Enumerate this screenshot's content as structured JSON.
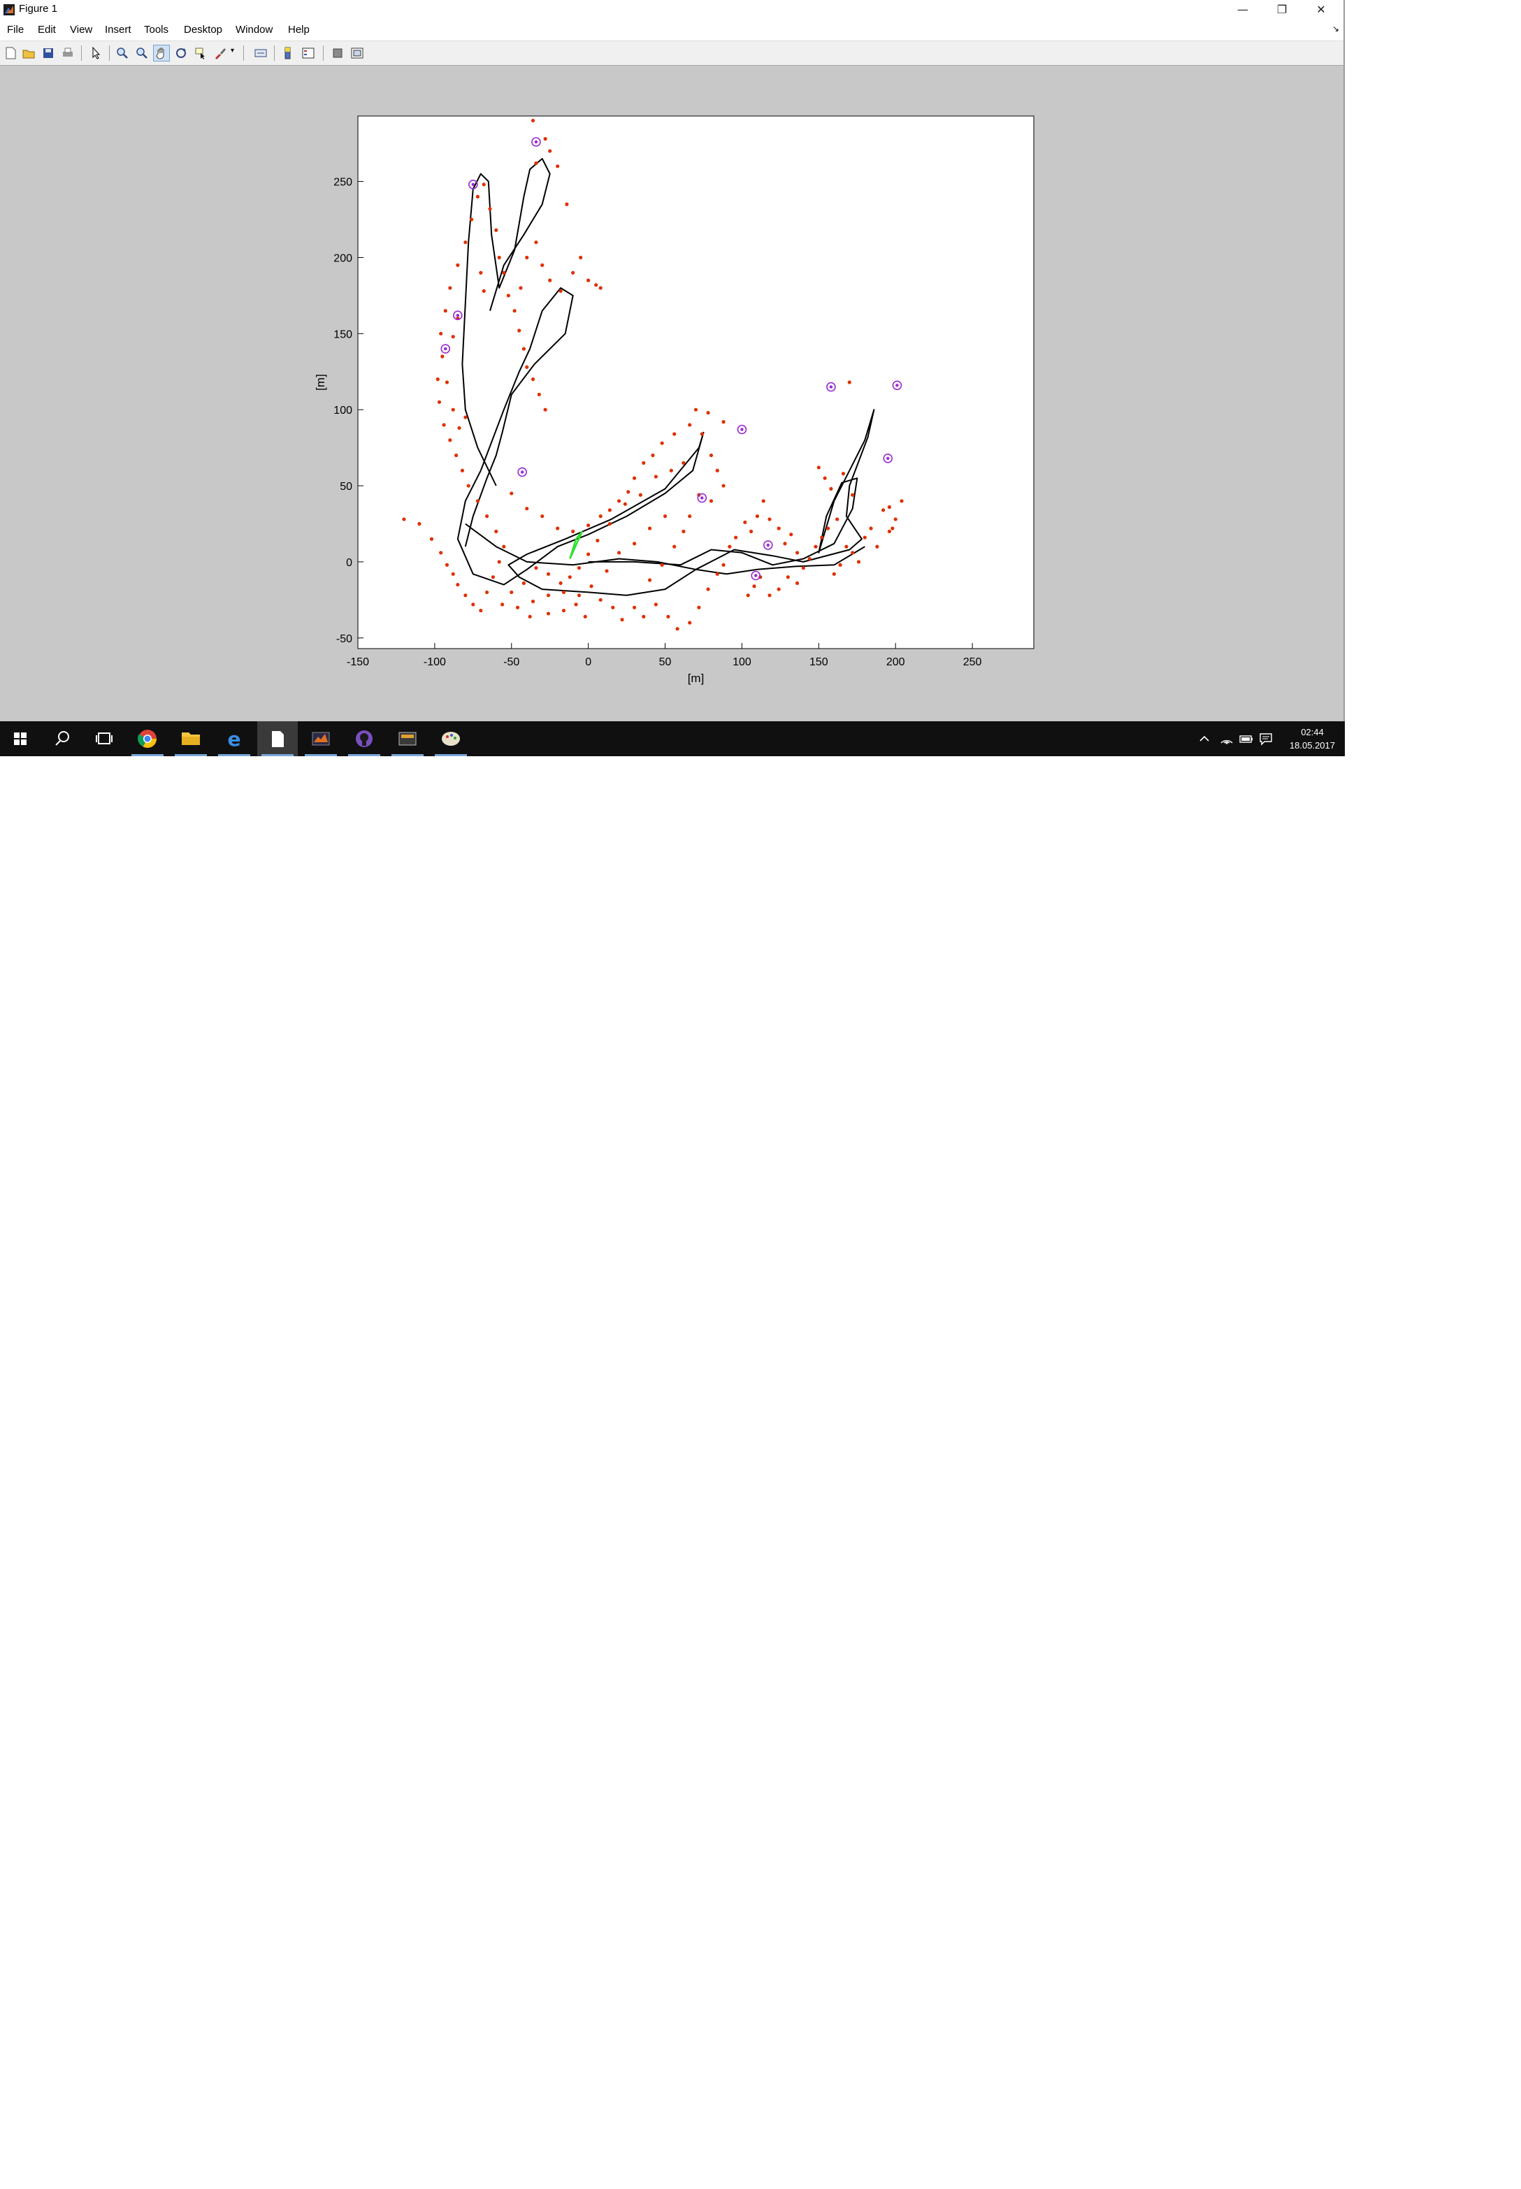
{
  "window": {
    "title": "Figure 1",
    "controls": {
      "minimize": "—",
      "restore": "❐",
      "close": "✕"
    }
  },
  "menu": {
    "items": [
      "File",
      "Edit",
      "View",
      "Insert",
      "Tools",
      "Desktop",
      "Window",
      "Help"
    ],
    "dock_arrow": "↘"
  },
  "toolbar": {
    "tools": [
      "new-figure-icon",
      "open-file-icon",
      "save-icon",
      "print-icon",
      "edit-plot-pointer-icon",
      "zoom-in-icon",
      "zoom-out-icon",
      "pan-hand-icon",
      "rotate-3d-icon",
      "data-cursor-icon",
      "brush-icon",
      "link-plot-icon",
      "insert-colorbar-icon",
      "insert-legend-icon",
      "hide-plot-tools-icon",
      "show-plot-tools-icon"
    ],
    "active_tool": "pan-hand-icon"
  },
  "chart_data": {
    "type": "scatter",
    "title": "",
    "xlabel": "[m]",
    "ylabel": "[m]",
    "xlim": [
      -150,
      290
    ],
    "ylim": [
      -57,
      293
    ],
    "xticks": [
      -150,
      -100,
      -50,
      0,
      50,
      100,
      150,
      200,
      250
    ],
    "yticks": [
      -50,
      0,
      50,
      100,
      150,
      200,
      250
    ],
    "grid": false,
    "legend": "none",
    "colors": {
      "trajectory": "#000000",
      "landmark": "#e03000",
      "circled": "#9a2ad0",
      "vehicle": "#30e030"
    },
    "trajectory": [
      [
        [
          0,
          0
        ],
        [
          30,
          0
        ],
        [
          60,
          -2
        ],
        [
          80,
          8
        ],
        [
          100,
          6
        ],
        [
          120,
          -2
        ],
        [
          140,
          2
        ],
        [
          160,
          12
        ],
        [
          172,
          35
        ],
        [
          175,
          55
        ],
        [
          165,
          52
        ],
        [
          155,
          30
        ],
        [
          150,
          6
        ],
        [
          160,
          40
        ],
        [
          180,
          80
        ],
        [
          186,
          100
        ],
        [
          182,
          82
        ],
        [
          170,
          50
        ],
        [
          168,
          30
        ],
        [
          178,
          15
        ],
        [
          170,
          8
        ],
        [
          140,
          0
        ],
        [
          120,
          4
        ],
        [
          95,
          8
        ],
        [
          70,
          -5
        ],
        [
          50,
          -18
        ],
        [
          25,
          -22
        ],
        [
          0,
          -20
        ],
        [
          -30,
          -18
        ],
        [
          -45,
          -10
        ],
        [
          -52,
          -2
        ],
        [
          -40,
          5
        ],
        [
          -15,
          15
        ],
        [
          15,
          28
        ],
        [
          50,
          48
        ],
        [
          72,
          75
        ],
        [
          75,
          85
        ],
        [
          68,
          60
        ],
        [
          50,
          45
        ],
        [
          25,
          30
        ],
        [
          0,
          18
        ],
        [
          -20,
          10
        ],
        [
          -40,
          -5
        ],
        [
          -55,
          -15
        ],
        [
          -75,
          -8
        ],
        [
          -85,
          15
        ],
        [
          -80,
          40
        ],
        [
          -70,
          60
        ]
      ],
      [
        [
          -70,
          60
        ],
        [
          -55,
          100
        ],
        [
          -45,
          125
        ],
        [
          -38,
          140
        ],
        [
          -30,
          165
        ],
        [
          -18,
          180
        ],
        [
          -10,
          175
        ],
        [
          -15,
          150
        ],
        [
          -35,
          130
        ],
        [
          -50,
          110
        ],
        [
          -56,
          85
        ],
        [
          -60,
          70
        ],
        [
          -66,
          55
        ],
        [
          -75,
          30
        ],
        [
          -80,
          10
        ]
      ],
      [
        [
          -60,
          50
        ],
        [
          -72,
          75
        ],
        [
          -80,
          100
        ],
        [
          -82,
          130
        ],
        [
          -80,
          170
        ],
        [
          -78,
          210
        ],
        [
          -75,
          245
        ],
        [
          -70,
          255
        ],
        [
          -65,
          250
        ],
        [
          -63,
          215
        ],
        [
          -58,
          180
        ],
        [
          -48,
          205
        ],
        [
          -42,
          240
        ],
        [
          -38,
          258
        ],
        [
          -30,
          265
        ],
        [
          -25,
          255
        ],
        [
          -30,
          235
        ],
        [
          -42,
          215
        ],
        [
          -55,
          195
        ],
        [
          -64,
          165
        ]
      ],
      [
        [
          -80,
          25
        ],
        [
          -60,
          10
        ],
        [
          -40,
          0
        ],
        [
          -10,
          -2
        ],
        [
          20,
          2
        ],
        [
          45,
          0
        ],
        [
          70,
          -5
        ],
        [
          90,
          -8
        ],
        [
          110,
          -5
        ],
        [
          135,
          -3
        ],
        [
          160,
          -2
        ],
        [
          180,
          10
        ]
      ]
    ],
    "landmarks": [
      [
        -120,
        28
      ],
      [
        -110,
        25
      ],
      [
        -102,
        15
      ],
      [
        -96,
        6
      ],
      [
        -92,
        -2
      ],
      [
        -88,
        -8
      ],
      [
        -85,
        -15
      ],
      [
        -80,
        -22
      ],
      [
        -75,
        -28
      ],
      [
        -70,
        -32
      ],
      [
        -66,
        -20
      ],
      [
        -62,
        -10
      ],
      [
        -58,
        0
      ],
      [
        -55,
        10
      ],
      [
        -60,
        20
      ],
      [
        -66,
        30
      ],
      [
        -72,
        40
      ],
      [
        -78,
        50
      ],
      [
        -82,
        60
      ],
      [
        -86,
        70
      ],
      [
        -90,
        80
      ],
      [
        -94,
        90
      ],
      [
        -97,
        105
      ],
      [
        -98,
        120
      ],
      [
        -95,
        135
      ],
      [
        -96,
        150
      ],
      [
        -93,
        165
      ],
      [
        -90,
        180
      ],
      [
        -85,
        195
      ],
      [
        -80,
        210
      ],
      [
        -76,
        225
      ],
      [
        -72,
        240
      ],
      [
        -68,
        248
      ],
      [
        -64,
        232
      ],
      [
        -60,
        218
      ],
      [
        -58,
        200
      ],
      [
        -55,
        190
      ],
      [
        -52,
        175
      ],
      [
        -48,
        165
      ],
      [
        -45,
        152
      ],
      [
        -42,
        140
      ],
      [
        -40,
        128
      ],
      [
        -36,
        120
      ],
      [
        -32,
        110
      ],
      [
        -28,
        100
      ],
      [
        -44,
        180
      ],
      [
        -40,
        200
      ],
      [
        -34,
        210
      ],
      [
        -30,
        195
      ],
      [
        -25,
        185
      ],
      [
        -18,
        178
      ],
      [
        -10,
        190
      ],
      [
        -5,
        200
      ],
      [
        0,
        185
      ],
      [
        5,
        182
      ],
      [
        8,
        180
      ],
      [
        -14,
        235
      ],
      [
        -20,
        260
      ],
      [
        -25,
        270
      ],
      [
        -28,
        278
      ],
      [
        -36,
        290
      ],
      [
        -34,
        262
      ],
      [
        -70,
        190
      ],
      [
        -68,
        178
      ],
      [
        -85,
        160
      ],
      [
        -88,
        148
      ],
      [
        -92,
        118
      ],
      [
        -88,
        100
      ],
      [
        -84,
        88
      ],
      [
        -80,
        95
      ],
      [
        -50,
        45
      ],
      [
        -40,
        35
      ],
      [
        -30,
        30
      ],
      [
        -20,
        22
      ],
      [
        -10,
        20
      ],
      [
        0,
        24
      ],
      [
        8,
        30
      ],
      [
        14,
        34
      ],
      [
        20,
        40
      ],
      [
        26,
        46
      ],
      [
        30,
        55
      ],
      [
        36,
        65
      ],
      [
        42,
        70
      ],
      [
        48,
        78
      ],
      [
        56,
        84
      ],
      [
        66,
        90
      ],
      [
        70,
        100
      ],
      [
        78,
        98
      ],
      [
        74,
        84
      ],
      [
        80,
        70
      ],
      [
        84,
        60
      ],
      [
        88,
        50
      ],
      [
        62,
        65
      ],
      [
        54,
        60
      ],
      [
        44,
        56
      ],
      [
        34,
        44
      ],
      [
        24,
        38
      ],
      [
        14,
        25
      ],
      [
        6,
        14
      ],
      [
        0,
        5
      ],
      [
        -6,
        -4
      ],
      [
        -12,
        -10
      ],
      [
        -18,
        -14
      ],
      [
        -26,
        -8
      ],
      [
        -34,
        -4
      ],
      [
        -42,
        -14
      ],
      [
        -50,
        -20
      ],
      [
        -56,
        -28
      ],
      [
        -46,
        -30
      ],
      [
        -36,
        -26
      ],
      [
        -26,
        -22
      ],
      [
        -16,
        -20
      ],
      [
        -8,
        -28
      ],
      [
        -2,
        -36
      ],
      [
        8,
        -25
      ],
      [
        16,
        -30
      ],
      [
        22,
        -38
      ],
      [
        30,
        -30
      ],
      [
        36,
        -36
      ],
      [
        44,
        -28
      ],
      [
        52,
        -36
      ],
      [
        58,
        -44
      ],
      [
        66,
        -40
      ],
      [
        72,
        -30
      ],
      [
        78,
        -18
      ],
      [
        84,
        -8
      ],
      [
        88,
        -2
      ],
      [
        92,
        10
      ],
      [
        96,
        16
      ],
      [
        102,
        26
      ],
      [
        106,
        20
      ],
      [
        110,
        30
      ],
      [
        114,
        40
      ],
      [
        118,
        28
      ],
      [
        124,
        22
      ],
      [
        128,
        12
      ],
      [
        132,
        18
      ],
      [
        136,
        6
      ],
      [
        140,
        -4
      ],
      [
        144,
        2
      ],
      [
        148,
        10
      ],
      [
        152,
        16
      ],
      [
        156,
        22
      ],
      [
        162,
        28
      ],
      [
        168,
        10
      ],
      [
        172,
        6
      ],
      [
        176,
        0
      ],
      [
        180,
        16
      ],
      [
        184,
        22
      ],
      [
        188,
        10
      ],
      [
        192,
        34
      ],
      [
        196,
        20
      ],
      [
        200,
        28
      ],
      [
        204,
        40
      ],
      [
        150,
        62
      ],
      [
        154,
        55
      ],
      [
        158,
        48
      ],
      [
        166,
        58
      ],
      [
        172,
        44
      ],
      [
        112,
        -10
      ],
      [
        108,
        -16
      ],
      [
        104,
        -22
      ],
      [
        118,
        -22
      ],
      [
        124,
        -18
      ],
      [
        130,
        -10
      ],
      [
        136,
        -14
      ],
      [
        160,
        -8
      ],
      [
        164,
        -2
      ],
      [
        170,
        118
      ],
      [
        196,
        36
      ],
      [
        198,
        22
      ],
      [
        40,
        -12
      ],
      [
        48,
        -2
      ],
      [
        56,
        10
      ],
      [
        62,
        20
      ],
      [
        66,
        30
      ],
      [
        72,
        44
      ],
      [
        50,
        30
      ],
      [
        40,
        22
      ],
      [
        30,
        12
      ],
      [
        20,
        6
      ],
      [
        12,
        -6
      ],
      [
        2,
        -16
      ],
      [
        -6,
        -22
      ],
      [
        -16,
        -32
      ],
      [
        -26,
        -34
      ],
      [
        -38,
        -36
      ],
      [
        88,
        92
      ],
      [
        80,
        40
      ]
    ],
    "circled_landmarks": [
      [
        -34,
        276
      ],
      [
        -85,
        162
      ],
      [
        -43,
        59
      ],
      [
        158,
        115
      ],
      [
        201,
        116
      ],
      [
        100,
        87
      ],
      [
        195,
        68
      ],
      [
        74,
        42
      ],
      [
        117,
        11
      ],
      [
        109,
        -9
      ],
      [
        -93,
        140
      ],
      [
        -75,
        248
      ]
    ],
    "vehicle": [
      [
        -12,
        2
      ],
      [
        -8,
        15
      ],
      [
        -4,
        20
      ]
    ]
  },
  "taskbar": {
    "apps": [
      "windows-start-icon",
      "search-icon",
      "task-view-icon",
      "chrome-icon",
      "file-explorer-icon",
      "edge-icon",
      "notepad-icon",
      "matlab-icon",
      "github-icon",
      "terminal-icon",
      "paint-icon"
    ],
    "active_app": "notepad-icon",
    "clock_time": "02:44",
    "clock_date": "18.05.2017"
  }
}
